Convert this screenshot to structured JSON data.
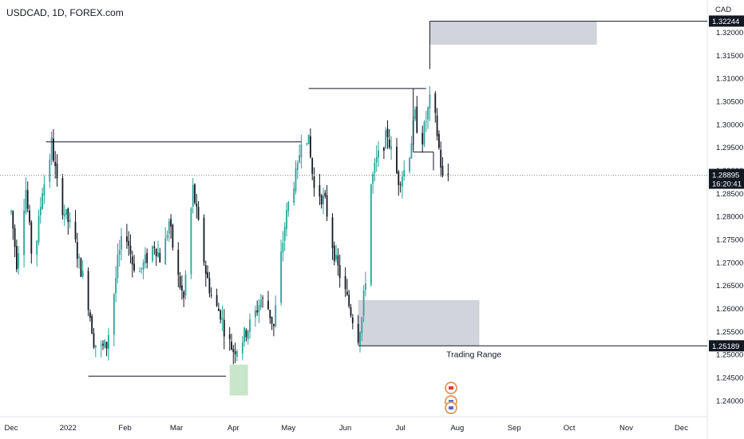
{
  "header": {
    "title": "USDCAD, 1D, FOREX.com"
  },
  "chart_data": {
    "type": "candlestick",
    "symbol": "USDCAD",
    "timeframe": "1D",
    "source": "FOREX.com",
    "currency_label": "CAD",
    "y_axis": {
      "ylim": [
        1.2365,
        1.3265
      ],
      "ticks": [
        "1.24000",
        "1.24500",
        "1.25000",
        "1.25500",
        "1.26000",
        "1.26500",
        "1.27000",
        "1.27500",
        "1.28000",
        "1.28500",
        "1.29000",
        "1.29500",
        "1.30000",
        "1.30500",
        "1.31000",
        "1.31500",
        "1.32000"
      ]
    },
    "x_axis": {
      "ticks": [
        {
          "label": "Dec",
          "day": 0
        },
        {
          "label": "2022",
          "day": 31
        },
        {
          "label": "Feb",
          "day": 62
        },
        {
          "label": "Mar",
          "day": 90
        },
        {
          "label": "Apr",
          "day": 121
        },
        {
          "label": "May",
          "day": 151
        },
        {
          "label": "Jun",
          "day": 182
        },
        {
          "label": "Jul",
          "day": 212
        },
        {
          "label": "Aug",
          "day": 243
        },
        {
          "label": "Sep",
          "day": 274
        },
        {
          "label": "Oct",
          "day": 304
        },
        {
          "label": "Nov",
          "day": 335
        },
        {
          "label": "Dec",
          "day": 365
        }
      ]
    },
    "current_price": {
      "value": 1.28895,
      "label": "1.28895",
      "countdown": "16:20:41"
    },
    "price_labels": [
      {
        "value": 1.32244,
        "label": "1.32244"
      },
      {
        "value": 1.25189,
        "label": "1.25189"
      }
    ],
    "annotations": [
      {
        "type": "text",
        "text": "Trading Range",
        "day": 237,
        "y": 1.2505
      }
    ],
    "colors": {
      "up": "#26a69a",
      "down": "#131722",
      "level": "#131722",
      "zone": "#d1d4dc",
      "zone_green": "#c8e6c9"
    }
  }
}
